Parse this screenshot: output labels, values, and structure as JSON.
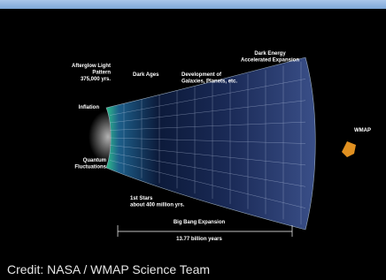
{
  "figure": {
    "labels": {
      "afterglow": [
        "Afterglow Light",
        "Pattern",
        "375,000 yrs."
      ],
      "dark_ages": [
        "Dark Ages"
      ],
      "development": [
        "Development of",
        "Galaxies, Planets, etc."
      ],
      "dark_energy": [
        "Dark Energy",
        "Accelerated Expansion"
      ],
      "inflation": [
        "Inflation"
      ],
      "wmap": [
        "WMAP"
      ],
      "quantum": [
        "Quantum",
        "Fluctuations"
      ],
      "first_stars": [
        "1st Stars",
        "about 400 million yrs."
      ],
      "expansion": [
        "Big Bang Expansion"
      ],
      "age": [
        "13.77 billion years"
      ]
    }
  },
  "credit": "Credit: NASA / WMAP Science Team"
}
